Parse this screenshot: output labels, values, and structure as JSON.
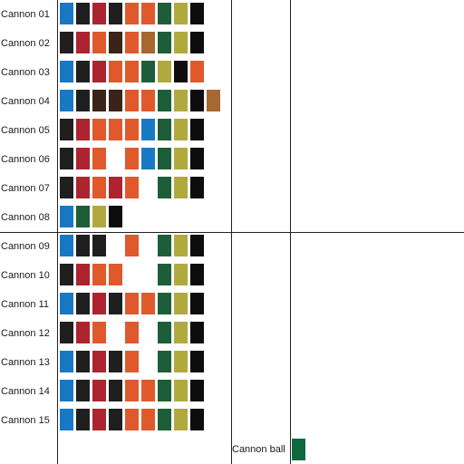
{
  "colors": {
    "B": "#1878c4",
    "K": "#1f1f1f",
    "R": "#ab2430",
    "O": "#e0592c",
    "D": "#3a2418",
    "G": "#1d5e38",
    "Y": "#b0a93e",
    "X": "#0d0d0d",
    "T": "#a7672e",
    "L": "#0e6a3e"
  },
  "chart_data": {
    "type": "table",
    "rows": [
      {
        "label": "Cannon 01",
        "cells": [
          "B",
          "K",
          "R",
          "K",
          "O",
          "O",
          "G",
          "Y",
          "X",
          null
        ]
      },
      {
        "label": "Cannon 02",
        "cells": [
          "K",
          "R",
          "O",
          "D",
          "O",
          "T",
          "G",
          "Y",
          "X",
          null
        ]
      },
      {
        "label": "Cannon 03",
        "cells": [
          "B",
          "K",
          "R",
          "O",
          "O",
          "G",
          "Y",
          "X",
          "O",
          null
        ]
      },
      {
        "label": "Cannon 04",
        "cells": [
          "B",
          "K",
          "D",
          "D",
          "O",
          "O",
          "G",
          "Y",
          "X",
          "T"
        ]
      },
      {
        "label": "Cannon 05",
        "cells": [
          "K",
          "R",
          "O",
          "O",
          "O",
          "B",
          "G",
          "Y",
          "X",
          null
        ]
      },
      {
        "label": "Cannon 06",
        "cells": [
          "K",
          "R",
          "O",
          null,
          "O",
          "B",
          "G",
          "Y",
          "X",
          null
        ]
      },
      {
        "label": "Cannon 07",
        "cells": [
          "K",
          "R",
          "O",
          "R",
          "O",
          null,
          "G",
          "Y",
          "X",
          null
        ]
      },
      {
        "label": "Cannon 08",
        "cells": [
          "B",
          "G",
          "Y",
          "X",
          null,
          null,
          null,
          null,
          null,
          null
        ]
      },
      {
        "label": "Cannon 09",
        "cells": [
          "B",
          "K",
          "K",
          null,
          "O",
          null,
          "G",
          "Y",
          "X",
          null
        ]
      },
      {
        "label": "Cannon 10",
        "cells": [
          "K",
          "R",
          "O",
          "O",
          null,
          null,
          "G",
          "Y",
          "X",
          null
        ]
      },
      {
        "label": "Cannon 11",
        "cells": [
          "B",
          "K",
          "R",
          "K",
          "O",
          "O",
          "G",
          "Y",
          "X",
          null
        ]
      },
      {
        "label": "Cannon 12",
        "cells": [
          "K",
          "R",
          "O",
          null,
          "O",
          null,
          "G",
          "Y",
          "X",
          null
        ]
      },
      {
        "label": "Cannon 13",
        "cells": [
          "B",
          "K",
          "R",
          "K",
          "O",
          null,
          "G",
          "Y",
          "X",
          null
        ]
      },
      {
        "label": "Cannon 14",
        "cells": [
          "B",
          "K",
          "R",
          "K",
          "O",
          "O",
          "G",
          "Y",
          "X",
          null
        ]
      },
      {
        "label": "Cannon 15",
        "cells": [
          "B",
          "K",
          "R",
          "K",
          "O",
          "O",
          "G",
          "Y",
          "X",
          null
        ]
      }
    ],
    "legend": {
      "label": "Cannon ball",
      "color": "L"
    }
  }
}
